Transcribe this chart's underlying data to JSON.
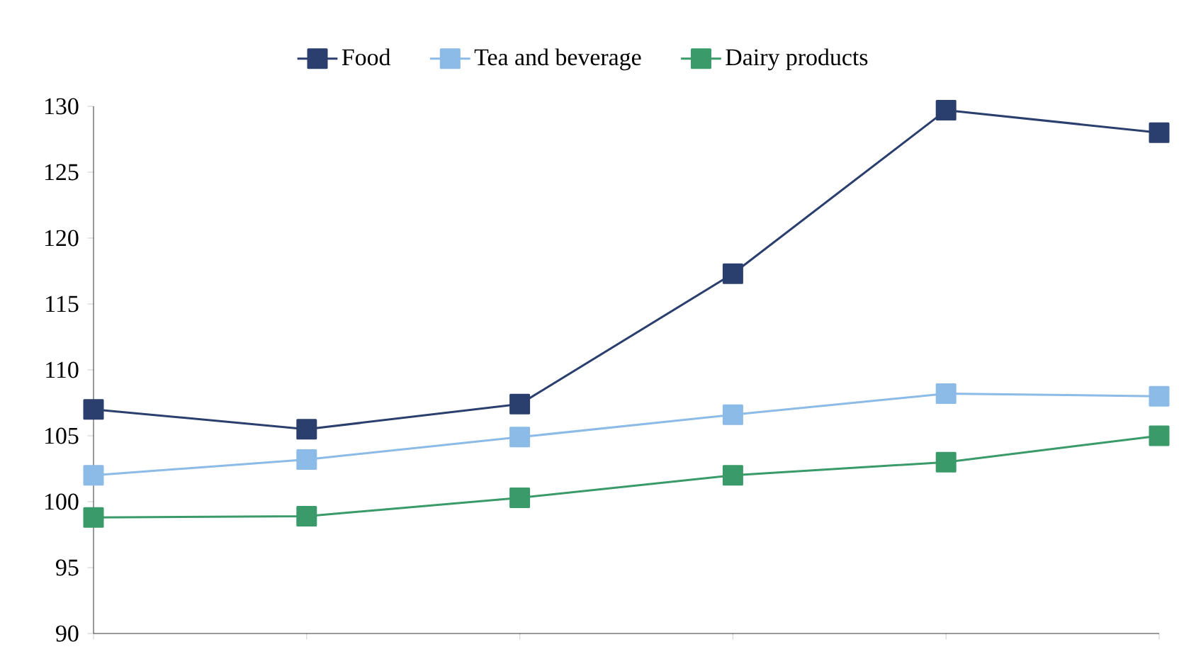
{
  "chart_data": {
    "type": "line",
    "categories": [
      null,
      null,
      null,
      null,
      null,
      null
    ],
    "series": [
      {
        "name": "Food",
        "color": "#2b3f6e",
        "values": [
          107,
          105.5,
          107.4,
          117.3,
          129.7,
          128
        ]
      },
      {
        "name": "Tea and beverage",
        "color": "#8bbbe6",
        "values": [
          102,
          103.2,
          104.9,
          106.6,
          108.2,
          108
        ]
      },
      {
        "name": "Dairy products",
        "color": "#3a9a6a",
        "values": [
          98.8,
          98.9,
          100.3,
          102,
          103,
          105
        ]
      }
    ],
    "ylim": [
      90,
      130
    ],
    "yticks": [
      90,
      95,
      100,
      105,
      110,
      115,
      120,
      125,
      130
    ],
    "tick_labels": "y",
    "grid": false,
    "legend": "top",
    "marker": "square",
    "line_style": "solid"
  }
}
